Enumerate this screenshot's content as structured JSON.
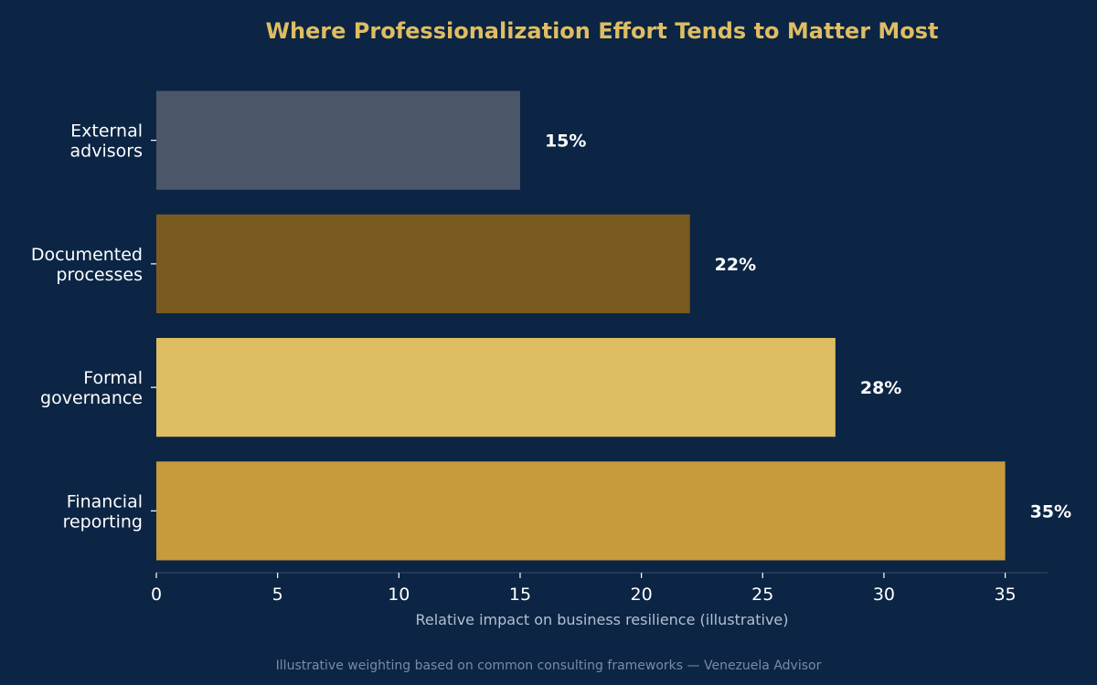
{
  "chart_data": {
    "type": "bar",
    "orientation": "horizontal",
    "title": "Where Professionalization Effort Tends to Matter Most",
    "xlabel": "Relative impact on business resilience (illustrative)",
    "ylabel": "",
    "categories": [
      [
        "Financial",
        "reporting"
      ],
      [
        "Formal",
        "governance"
      ],
      [
        "Documented",
        "processes"
      ],
      [
        "External",
        "advisors"
      ]
    ],
    "values": [
      35,
      28,
      22,
      15
    ],
    "value_labels": [
      "35%",
      "28%",
      "22%",
      "15%"
    ],
    "bar_colors": [
      "#c79b3c",
      "#dfbd63",
      "#7a5b1f",
      "#4b5668"
    ],
    "xlim": [
      0,
      36.75
    ],
    "xticks": [
      0,
      5,
      10,
      15,
      20,
      25,
      30,
      35
    ],
    "xtick_labels": [
      "0",
      "5",
      "10",
      "15",
      "20",
      "25",
      "30",
      "35"
    ],
    "grid": false,
    "legend": "none",
    "footnote": "Illustrative weighting based on common consulting frameworks — Venezuela Advisor"
  },
  "colors": {
    "background": "#0c2544",
    "title": "#dfbd63",
    "label_text": "#ffffff",
    "axis_label": "#b3c0d1",
    "axis_line": "#2f4462",
    "footnote": "#7b8ba2"
  }
}
